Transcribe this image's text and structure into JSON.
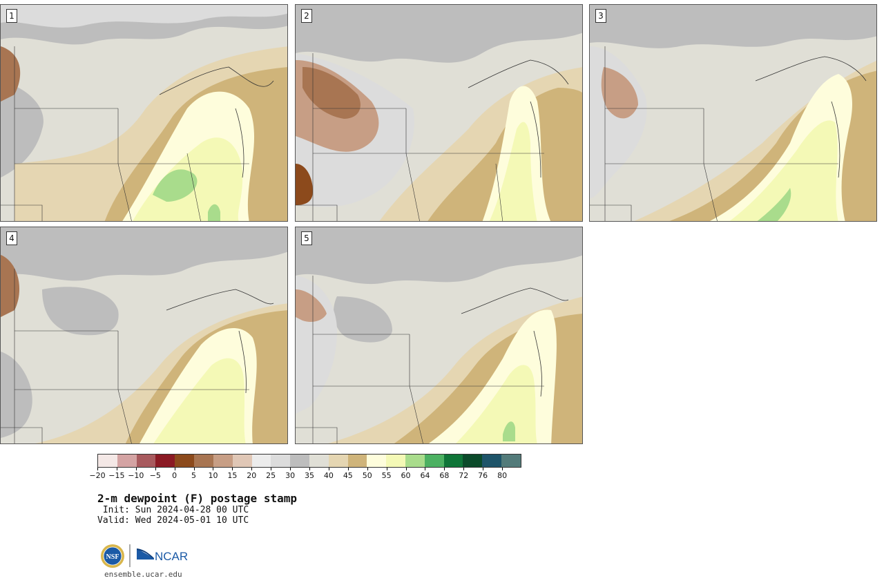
{
  "panels": [
    {
      "label": "1"
    },
    {
      "label": "2"
    },
    {
      "label": "3"
    },
    {
      "label": "4"
    },
    {
      "label": "5"
    }
  ],
  "colorbar": {
    "colors": [
      "#f4e8e6",
      "#d4a3a3",
      "#a85a5e",
      "#8b1a24",
      "#8c4a1c",
      "#a87552",
      "#c79e85",
      "#e0c7b6",
      "#ececec",
      "#dcdcdc",
      "#bdbdbd",
      "#e0dfd6",
      "#e5d6b2",
      "#cfb47a",
      "#fefddc",
      "#f4f9b6",
      "#a9dc8c",
      "#4cb162",
      "#0f7538",
      "#0b4a2a",
      "#1e5469",
      "#537b7a"
    ],
    "ticks": [
      "−20",
      "−15",
      "−10",
      "−5",
      "0",
      "5",
      "10",
      "15",
      "20",
      "25",
      "30",
      "35",
      "40",
      "45",
      "50",
      "55",
      "60",
      "64",
      "68",
      "72",
      "76",
      "80"
    ]
  },
  "title": "2-m dewpoint (F) postage stamp",
  "init": " Init: Sun 2024-04-28 00 UTC",
  "valid": "Valid: Wed 2024-05-01 10 UTC",
  "logo": {
    "left_text": "NSF",
    "right_text": "NCAR"
  },
  "site": "ensemble.ucar.edu"
}
